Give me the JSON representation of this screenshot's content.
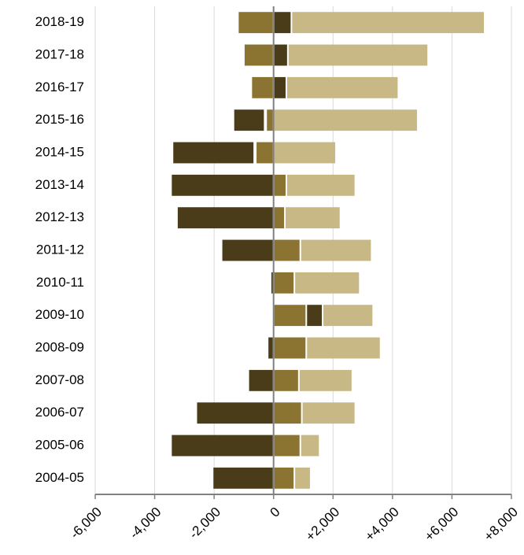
{
  "chart_data": {
    "type": "bar",
    "orientation": "horizontal",
    "stacked": "diverging",
    "categories": [
      "2018-19",
      "2017-18",
      "2016-17",
      "2015-16",
      "2014-15",
      "2013-14",
      "2012-13",
      "2011-12",
      "2010-11",
      "2009-10",
      "2008-09",
      "2007-08",
      "2006-07",
      "2005-06",
      "2004-05"
    ],
    "xlim": [
      -6000,
      8000
    ],
    "xticks": [
      -6000,
      -4000,
      -2000,
      0,
      2000,
      4000,
      6000,
      8000
    ],
    "xtick_labels": [
      "-6,000",
      "-4,000",
      "-2,000",
      "0",
      "+2,000",
      "+4,000",
      "+6,000",
      "+8,000"
    ],
    "grid": "vertical",
    "legend": "none",
    "colors": {
      "dark": "#4a3c18",
      "mid": "#8b7432",
      "light": "#c8b886",
      "axis": "#808080",
      "grid": "#d9d9d9"
    },
    "bars": [
      [
        {
          "from": -1200,
          "to": 0,
          "color": "mid"
        },
        {
          "from": 0,
          "to": 600,
          "color": "dark"
        },
        {
          "from": 600,
          "to": 7100,
          "color": "light"
        }
      ],
      [
        {
          "from": -1000,
          "to": 0,
          "color": "mid"
        },
        {
          "from": 0,
          "to": 480,
          "color": "dark"
        },
        {
          "from": 480,
          "to": 5200,
          "color": "light"
        }
      ],
      [
        {
          "from": -750,
          "to": 0,
          "color": "mid"
        },
        {
          "from": 0,
          "to": 430,
          "color": "dark"
        },
        {
          "from": 430,
          "to": 4200,
          "color": "light"
        }
      ],
      [
        {
          "from": -1350,
          "to": -300,
          "color": "dark"
        },
        {
          "from": -250,
          "to": 0,
          "color": "mid"
        },
        {
          "from": 0,
          "to": 4850,
          "color": "light"
        }
      ],
      [
        {
          "from": -3400,
          "to": -650,
          "color": "dark"
        },
        {
          "from": -600,
          "to": 0,
          "color": "mid"
        },
        {
          "from": 0,
          "to": 2100,
          "color": "light"
        }
      ],
      [
        {
          "from": -3450,
          "to": 0,
          "color": "dark"
        },
        {
          "from": 0,
          "to": 430,
          "color": "mid"
        },
        {
          "from": 430,
          "to": 2750,
          "color": "light"
        }
      ],
      [
        {
          "from": -3250,
          "to": 0,
          "color": "dark"
        },
        {
          "from": 0,
          "to": 380,
          "color": "mid"
        },
        {
          "from": 380,
          "to": 2250,
          "color": "light"
        }
      ],
      [
        {
          "from": -1750,
          "to": 0,
          "color": "dark"
        },
        {
          "from": 0,
          "to": 900,
          "color": "mid"
        },
        {
          "from": 900,
          "to": 3300,
          "color": "light"
        }
      ],
      [
        {
          "from": -100,
          "to": 0,
          "color": "dark"
        },
        {
          "from": 0,
          "to": 700,
          "color": "mid"
        },
        {
          "from": 700,
          "to": 2900,
          "color": "light"
        }
      ],
      [
        {
          "from": 0,
          "to": 1100,
          "color": "mid"
        },
        {
          "from": 1100,
          "to": 1650,
          "color": "dark"
        },
        {
          "from": 1650,
          "to": 3350,
          "color": "light"
        }
      ],
      [
        {
          "from": -200,
          "to": 0,
          "color": "dark"
        },
        {
          "from": 0,
          "to": 1100,
          "color": "mid"
        },
        {
          "from": 1100,
          "to": 3600,
          "color": "light"
        }
      ],
      [
        {
          "from": -850,
          "to": 0,
          "color": "dark"
        },
        {
          "from": 0,
          "to": 850,
          "color": "mid"
        },
        {
          "from": 850,
          "to": 2650,
          "color": "light"
        }
      ],
      [
        {
          "from": -2600,
          "to": 0,
          "color": "dark"
        },
        {
          "from": 0,
          "to": 950,
          "color": "mid"
        },
        {
          "from": 950,
          "to": 2750,
          "color": "light"
        }
      ],
      [
        {
          "from": -3450,
          "to": 0,
          "color": "dark"
        },
        {
          "from": 0,
          "to": 900,
          "color": "mid"
        },
        {
          "from": 900,
          "to": 1550,
          "color": "light"
        }
      ],
      [
        {
          "from": -2050,
          "to": 0,
          "color": "dark"
        },
        {
          "from": 0,
          "to": 700,
          "color": "mid"
        },
        {
          "from": 700,
          "to": 1250,
          "color": "light"
        }
      ]
    ]
  }
}
